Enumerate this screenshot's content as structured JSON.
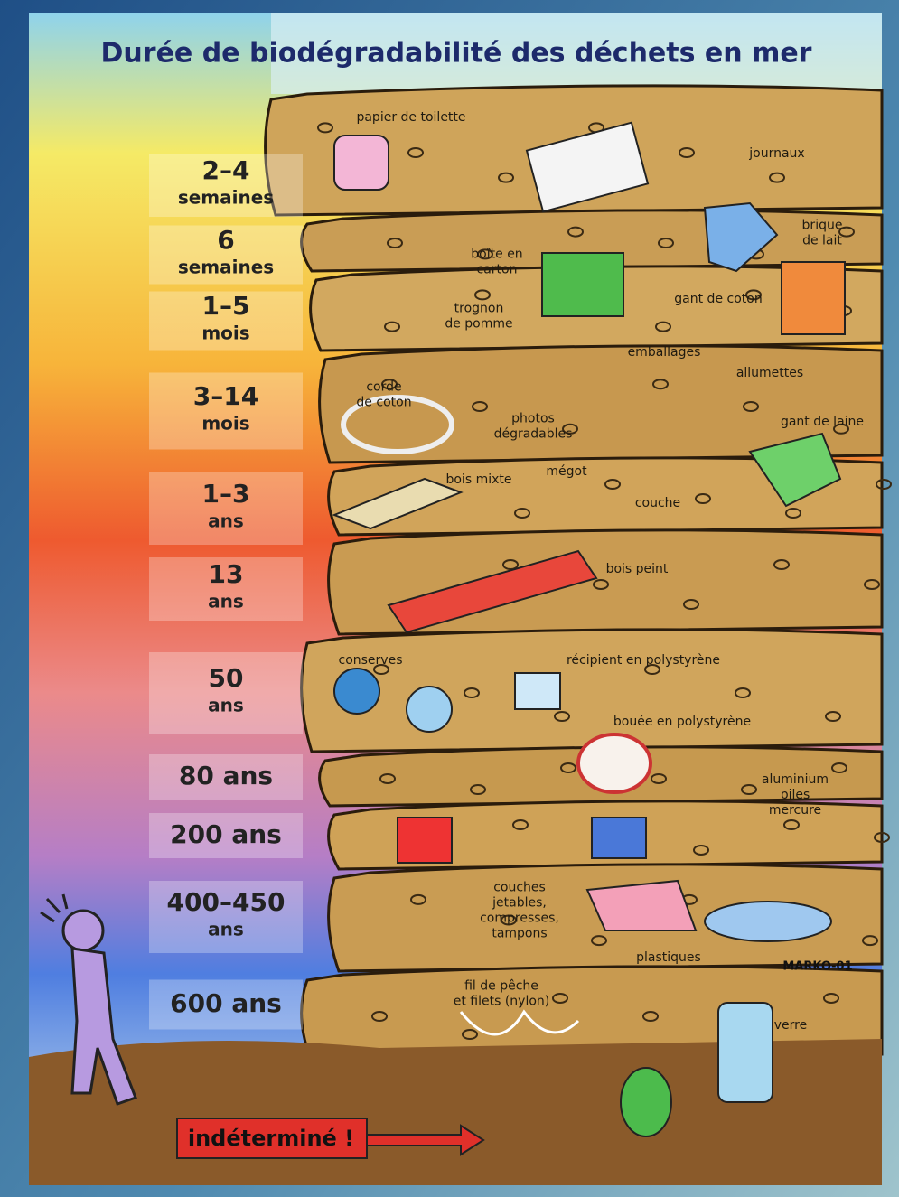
{
  "title": "Durée de biodégradabilité des déchets en mer",
  "durations": [
    {
      "lines": [
        "2–4",
        "semaines"
      ]
    },
    {
      "lines": [
        "6",
        "semaines"
      ]
    },
    {
      "lines": [
        "1–5",
        "mois"
      ]
    },
    {
      "lines": [
        "3–14",
        "mois"
      ]
    },
    {
      "lines": [
        "1–3",
        "ans"
      ]
    },
    {
      "lines": [
        "13",
        "ans"
      ]
    },
    {
      "lines": [
        "50",
        "ans"
      ]
    },
    {
      "lines": [
        "80 ans"
      ]
    },
    {
      "lines": [
        "200 ans"
      ]
    },
    {
      "lines": [
        "400–450",
        "ans"
      ]
    },
    {
      "lines": [
        "600 ans"
      ]
    }
  ],
  "items": [
    {
      "lines": [
        "papier de toilette"
      ]
    },
    {
      "lines": [
        "journaux"
      ]
    },
    {
      "lines": [
        "brique",
        "de lait"
      ]
    },
    {
      "lines": [
        "boîte en",
        "carton"
      ]
    },
    {
      "lines": [
        "trognon",
        "de pomme"
      ]
    },
    {
      "lines": [
        "gant de coton"
      ]
    },
    {
      "lines": [
        "emballages"
      ]
    },
    {
      "lines": [
        "allumettes"
      ]
    },
    {
      "lines": [
        "corde",
        "de coton"
      ]
    },
    {
      "lines": [
        "photos",
        "dégradables"
      ]
    },
    {
      "lines": [
        "gant de laine"
      ]
    },
    {
      "lines": [
        "bois mixte"
      ]
    },
    {
      "lines": [
        "mégot"
      ]
    },
    {
      "lines": [
        "couche"
      ]
    },
    {
      "lines": [
        "conserves"
      ]
    },
    {
      "lines": [
        "récipient en polystyrène"
      ]
    },
    {
      "lines": [
        "bouée en polystyrène"
      ]
    },
    {
      "lines": [
        "aluminium",
        "piles",
        "mercure"
      ]
    },
    {
      "lines": [
        "couches",
        "jetables,",
        "compresses,",
        "tampons"
      ]
    },
    {
      "lines": [
        "plastiques"
      ]
    },
    {
      "lines": [
        "fil de pêche",
        "et filets (nylon)"
      ]
    },
    {
      "lines": [
        "verre"
      ]
    },
    {
      "lines": [
        "bois peint"
      ]
    }
  ],
  "footer_label": "indéterminé !",
  "signature": "MARKO-01"
}
